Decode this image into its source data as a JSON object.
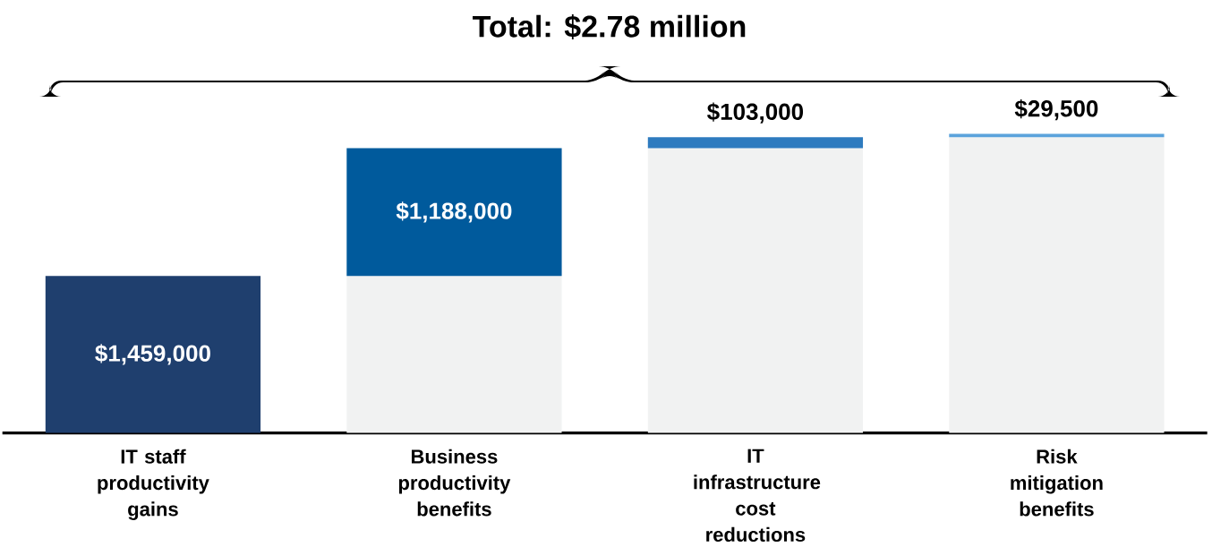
{
  "chart_data": {
    "type": "bar",
    "title": "Total: $2.78 million",
    "categories": [
      "IT staff productivity gains",
      "Business productivity benefits",
      "IT infrastructure cost reductions",
      "Risk mitigation benefits"
    ],
    "stacked": true,
    "series": [
      {
        "color": "#f1f2f2",
        "values": [
          0,
          1459000,
          2647000,
          2750000
        ]
      },
      {
        "colors": [
          "#1f3f6e",
          "#005a9c",
          "#2e7bbf",
          "#5ba3dc"
        ],
        "values": [
          1459000,
          1188000,
          103000,
          29500
        ],
        "value_labels": [
          "$1,459,000",
          "$1,188,000",
          "$103,000",
          "$29,500"
        ]
      }
    ]
  }
}
